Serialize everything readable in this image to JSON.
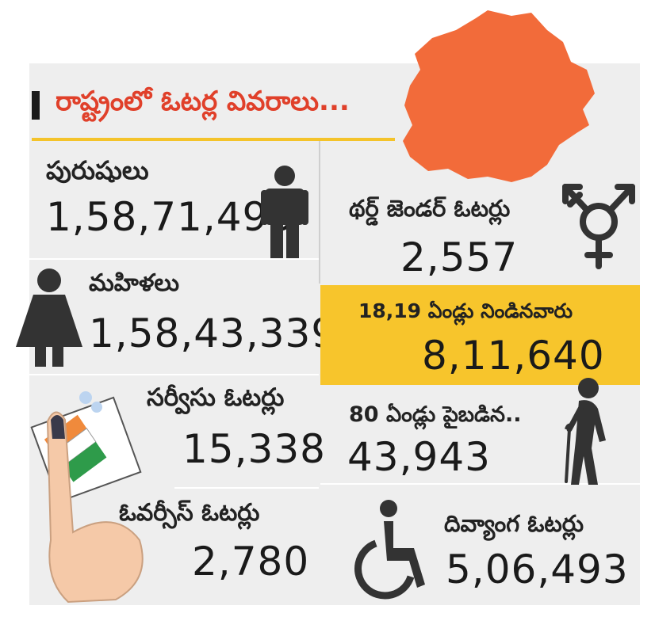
{
  "title": "రాష్ట్రంలో ఓటర్ల వివరాలు...",
  "stats": {
    "men": {
      "label": "పురుషులు",
      "value": "1,58,71,493",
      "icon": "male-person-icon"
    },
    "third_gender": {
      "label": "థర్డ్ జెండర్ ఓటర్లు",
      "value": "2,557",
      "icon": "transgender-symbol-icon"
    },
    "women": {
      "label": "మహిళలు",
      "value": "1,58,43,339",
      "icon": "female-person-icon"
    },
    "young": {
      "label": "18,19 ఏండ్లు నిండినవారు",
      "value": "8,11,640"
    },
    "service": {
      "label": "సర్వీసు ఓటర్లు",
      "value": "15,338"
    },
    "senior": {
      "label": "80 ఏండ్లు పైబడిన..",
      "value": "43,943",
      "icon": "elderly-person-icon"
    },
    "overseas": {
      "label": "ఓవర్సీస్ ఓటర్లు",
      "value": "2,780"
    },
    "disabled": {
      "label": "దివ్యాంగ ఓటర్లు",
      "value": "5,06,493",
      "icon": "wheelchair-icon"
    }
  },
  "colors": {
    "panel": "#eeeeee",
    "map": "#f26b3a",
    "title": "#e0402a",
    "highlight": "#f7c52c",
    "icon": "#333333"
  },
  "decorations": [
    "telangana-map",
    "inked-finger-icon",
    "ballot-icon"
  ]
}
